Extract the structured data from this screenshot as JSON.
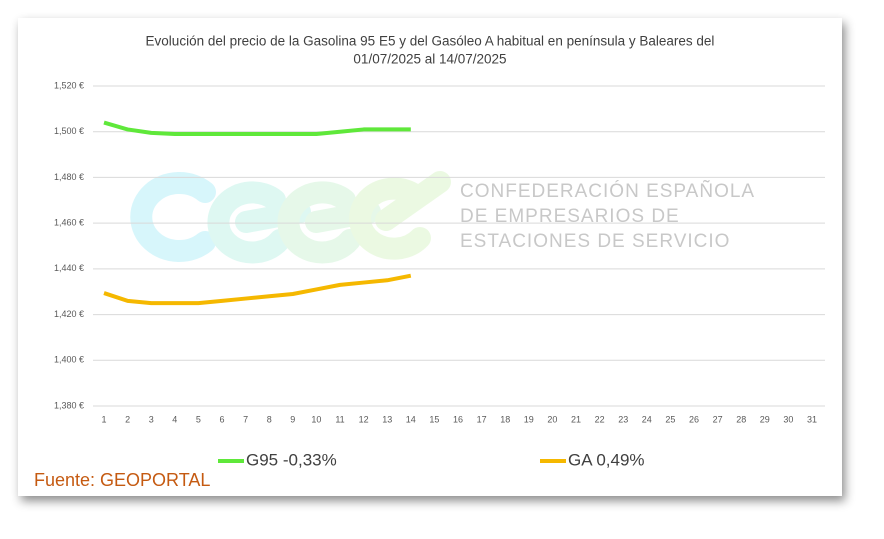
{
  "chart_data": {
    "type": "line",
    "title": [
      "Evolución del precio de la Gasolina 95 E5 y del Gasóleo A habitual en península y Baleares del",
      "01/07/2025 al 14/07/2025"
    ],
    "categories": [
      "1",
      "2",
      "3",
      "4",
      "5",
      "6",
      "7",
      "8",
      "9",
      "10",
      "11",
      "12",
      "13",
      "14",
      "15",
      "16",
      "17",
      "18",
      "19",
      "20",
      "21",
      "22",
      "23",
      "24",
      "25",
      "26",
      "27",
      "28",
      "29",
      "30",
      "31"
    ],
    "series": [
      {
        "name": "G95 -0,33%",
        "color": "#5fe83a",
        "values": [
          1.504,
          1.501,
          1.4995,
          1.499,
          1.499,
          1.499,
          1.499,
          1.499,
          1.499,
          1.499,
          1.5,
          1.501,
          1.501,
          1.501,
          null,
          null,
          null,
          null,
          null,
          null,
          null,
          null,
          null,
          null,
          null,
          null,
          null,
          null,
          null,
          null,
          null
        ]
      },
      {
        "name": "GA 0,49%",
        "color": "#f5b800",
        "values": [
          1.4294,
          1.426,
          1.425,
          1.425,
          1.425,
          1.426,
          1.427,
          1.428,
          1.429,
          1.431,
          1.433,
          1.434,
          1.435,
          1.437,
          null,
          null,
          null,
          null,
          null,
          null,
          null,
          null,
          null,
          null,
          null,
          null,
          null,
          null,
          null,
          null,
          null
        ]
      }
    ],
    "ylim": [
      1.38,
      1.52
    ],
    "yticks": [
      {
        "value": 1.38,
        "label": "1,380 €"
      },
      {
        "value": 1.4,
        "label": "1,400 €"
      },
      {
        "value": 1.42,
        "label": "1,420 €"
      },
      {
        "value": 1.44,
        "label": "1,440 €"
      },
      {
        "value": 1.46,
        "label": "1,460 €"
      },
      {
        "value": 1.48,
        "label": "1,480 €"
      },
      {
        "value": 1.5,
        "label": "1,500 €"
      },
      {
        "value": 1.52,
        "label": "1,520 €"
      }
    ],
    "grid": true
  },
  "watermark": [
    "CONFEDERACIÓN ESPAÑOLA",
    "DE EMPRESARIOS DE",
    "ESTACIONES DE SERVICIO"
  ],
  "source": "Fuente: GEOPORTAL"
}
